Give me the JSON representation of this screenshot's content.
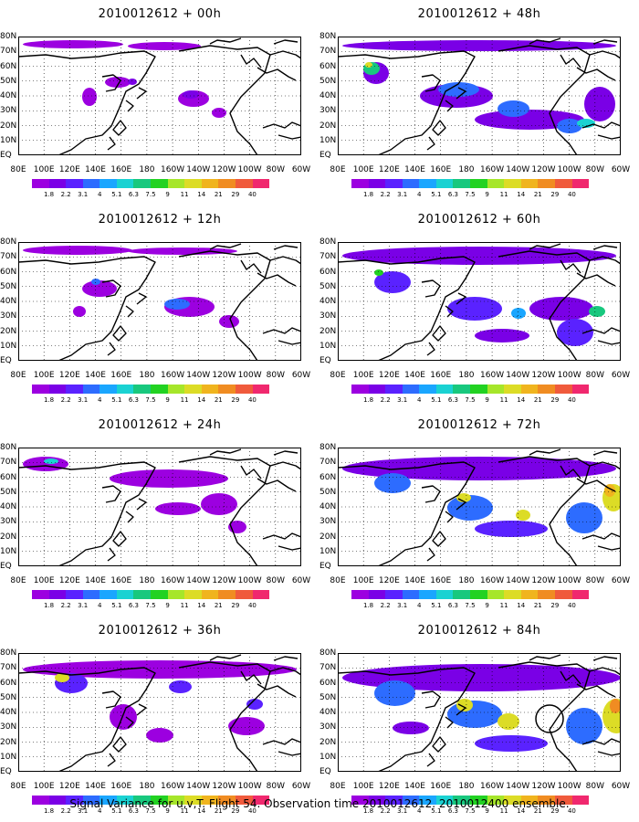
{
  "panels": [
    {
      "title": "2010012612 + 00h"
    },
    {
      "title": "2010012612 + 48h"
    },
    {
      "title": "2010012612 + 12h"
    },
    {
      "title": "2010012612 + 60h"
    },
    {
      "title": "2010012612 + 24h"
    },
    {
      "title": "2010012612 + 72h"
    },
    {
      "title": "2010012612 + 36h"
    },
    {
      "title": "2010012612 + 84h"
    }
  ],
  "lat_labels": [
    "80N",
    "70N",
    "60N",
    "50N",
    "40N",
    "30N",
    "20N",
    "10N",
    "EQ"
  ],
  "lon_labels": [
    "80E",
    "100E",
    "120E",
    "140E",
    "160E",
    "180",
    "160W",
    "140W",
    "120W",
    "100W",
    "80W",
    "60W"
  ],
  "colorbar": {
    "labels": [
      "1.8",
      "2.2",
      "3.1",
      "4",
      "5.1",
      "6.3",
      "7.5",
      "9",
      "11",
      "14",
      "21",
      "29",
      "40"
    ],
    "colors": [
      "#9c00e0",
      "#7a00e6",
      "#5a22ff",
      "#2d6cff",
      "#1aa6ff",
      "#1ad2d2",
      "#18c87e",
      "#22d222",
      "#a6e62a",
      "#dcdc26",
      "#f0b41e",
      "#f08c22",
      "#f05a3c",
      "#f0286e"
    ]
  },
  "caption": "Signal Variance for u,v,T. Flight 54. Observation time 2010012612. 2010012400 ensemble."
}
